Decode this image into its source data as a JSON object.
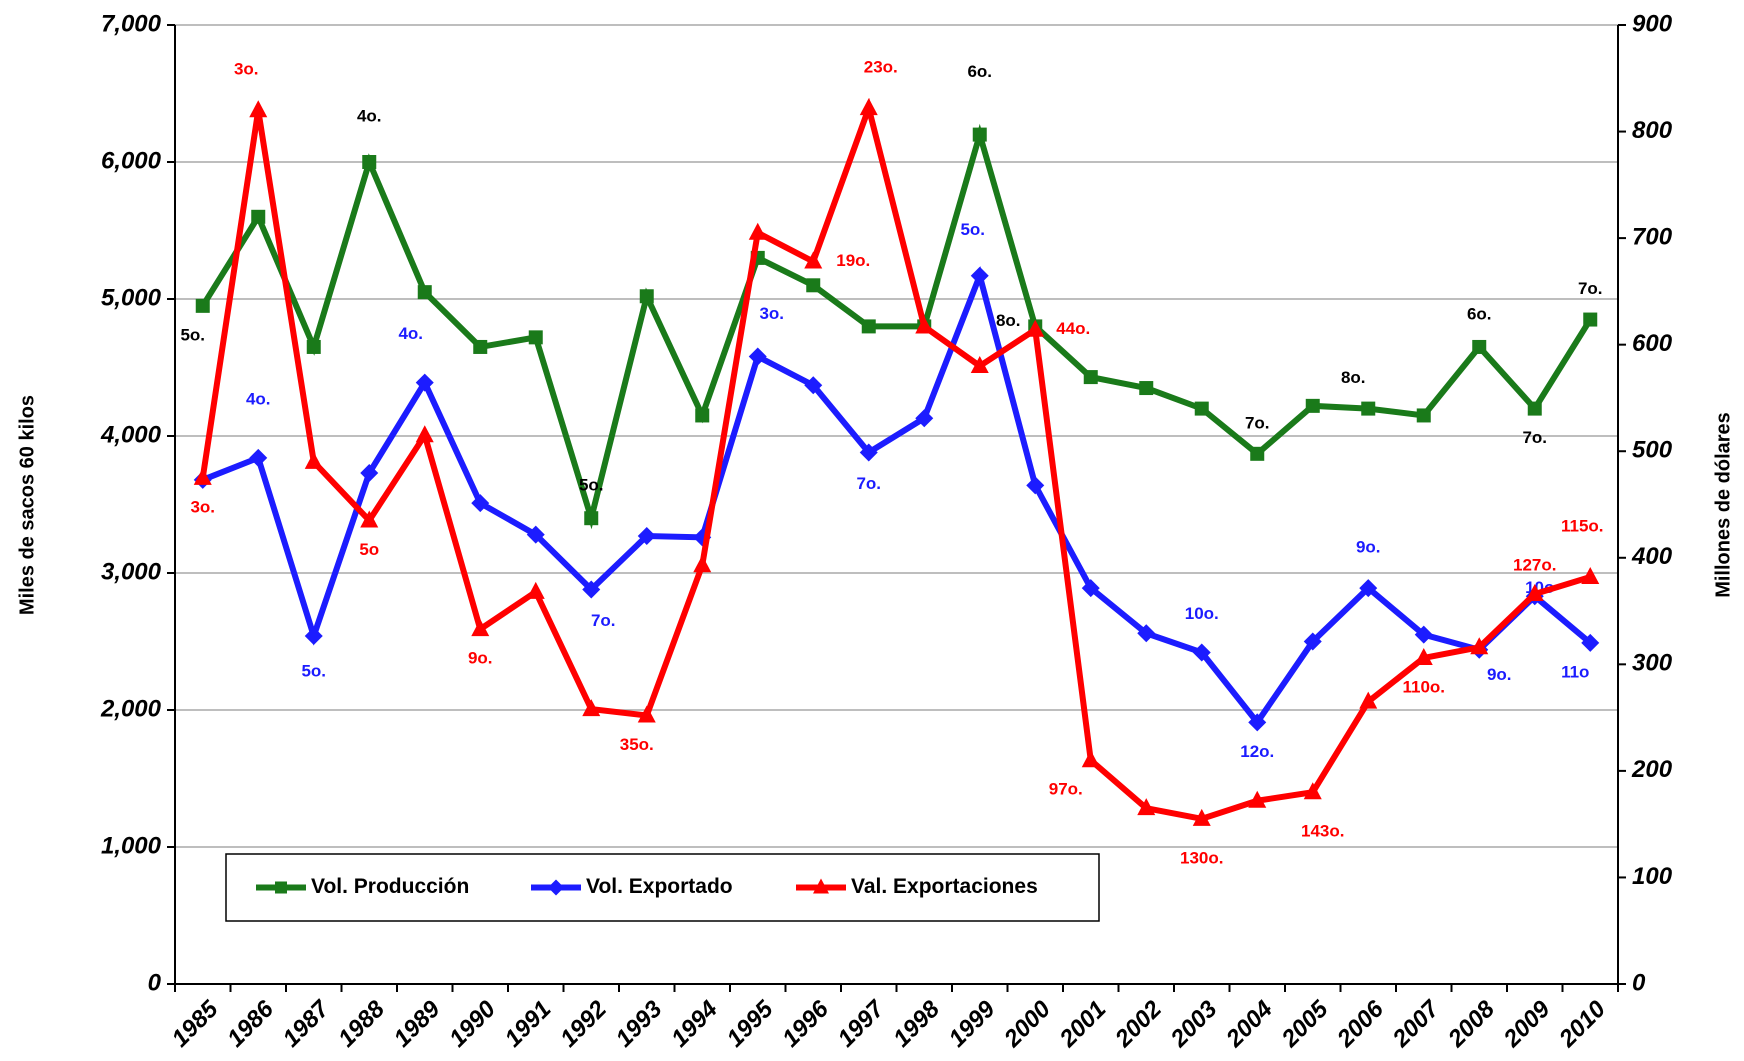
{
  "chart_data": {
    "type": "line",
    "categories": [
      "1985",
      "1986",
      "1987",
      "1988",
      "1989",
      "1990",
      "1991",
      "1992",
      "1993",
      "1994",
      "1995",
      "1996",
      "1997",
      "1998",
      "1999",
      "2000",
      "2001",
      "2002",
      "2003",
      "2004",
      "2005",
      "2006",
      "2007",
      "2008",
      "2009",
      "2010"
    ],
    "y_label": "Miles de sacos 60 kilos",
    "y2_label": "Millones de dólares",
    "ylim": [
      0,
      7000
    ],
    "yticks": [
      0,
      {
        "value": 1000,
        "label": "1,000"
      },
      {
        "value": 2000,
        "label": "2,000"
      },
      {
        "value": 3000,
        "label": "3,000"
      },
      {
        "value": 4000,
        "label": "4,000"
      },
      {
        "value": 5000,
        "label": "5,000"
      },
      {
        "value": 6000,
        "label": "6,000"
      },
      {
        "value": 7000,
        "label": "7,000"
      }
    ],
    "y2lim": [
      0,
      900
    ],
    "y2ticks": [
      0,
      100,
      200,
      300,
      400,
      500,
      600,
      700,
      800,
      900
    ],
    "grid": true,
    "legend": "bottom-left",
    "series": [
      {
        "name": "Vol. Producción",
        "color": "#1a7a1a",
        "marker": "square",
        "label_color": "#000000",
        "values": [
          4950,
          5600,
          4650,
          6000,
          5050,
          4650,
          4720,
          3400,
          5020,
          4150,
          5300,
          5100,
          4800,
          4800,
          6200,
          4800,
          4430,
          4350,
          4200,
          3870,
          4220,
          4200,
          4150,
          4650,
          4200,
          4850
        ],
        "rank_labels": [
          "5o.",
          null,
          null,
          "4o.",
          null,
          null,
          null,
          "5o.",
          null,
          null,
          null,
          null,
          null,
          null,
          "6o.",
          "8o.",
          null,
          null,
          null,
          "7o.",
          null,
          "8o.",
          null,
          "6o.",
          "7o.",
          "7o."
        ]
      },
      {
        "name": "Vol. Exportado",
        "color": "#1c1cff",
        "marker": "diamond",
        "label_color": "#1c1cff",
        "values": [
          3680,
          3840,
          2540,
          3730,
          4390,
          3510,
          3280,
          2880,
          3270,
          3260,
          4580,
          4370,
          3880,
          4130,
          5170,
          3640,
          2890,
          2560,
          2420,
          1910,
          2500,
          2890,
          2550,
          2440,
          2830,
          2490
        ],
        "rank_labels": [
          null,
          "4o.",
          "5o.",
          null,
          "4o.",
          null,
          null,
          "7o.",
          null,
          null,
          "3o.",
          null,
          "7o.",
          null,
          "5o.",
          null,
          null,
          null,
          "10o.",
          "12o.",
          null,
          "9o.",
          null,
          "9o.",
          "10o",
          "11o"
        ]
      },
      {
        "name": "Val. Exportaciones",
        "color": "#ff0000",
        "marker": "triangle",
        "axis": "y2",
        "label_color": "#ff0000",
        "values": [
          475,
          820,
          490,
          435,
          515,
          333,
          368,
          258,
          252,
          393,
          705,
          678,
          822,
          617,
          580,
          614,
          210,
          165,
          155,
          172,
          180,
          265,
          306,
          316,
          366,
          382
        ],
        "rank_labels": [
          "3o.",
          "3o.",
          null,
          "5o",
          null,
          "9o.",
          null,
          null,
          "35o.",
          null,
          null,
          "19o.",
          "23o.",
          null,
          null,
          "44o.",
          "97o.",
          null,
          "130o.",
          null,
          "143o.",
          null,
          "110o.",
          null,
          "127o.",
          "115o."
        ]
      }
    ]
  }
}
